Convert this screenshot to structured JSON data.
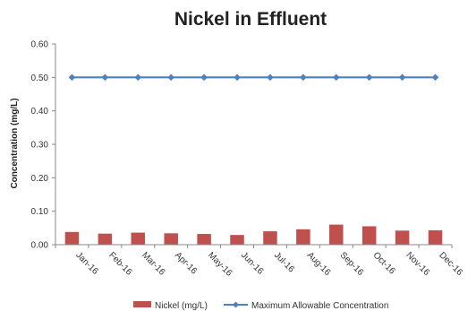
{
  "chart_data": {
    "type": "bar",
    "title": "Nickel in Effluent",
    "xlabel": "",
    "ylabel": "Concentration (mg/L)",
    "categories": [
      "Jan-16",
      "Feb-16",
      "Mar-16",
      "Apr-16",
      "May-16",
      "Jun-16",
      "Jul-16",
      "Aug-16",
      "Sep-16",
      "Oct-16",
      "Nov-16",
      "Dec-16"
    ],
    "ylim": [
      0,
      0.6
    ],
    "yticks": [
      "0.00",
      "0.10",
      "0.20",
      "0.30",
      "0.40",
      "0.50",
      "0.60"
    ],
    "grid": false,
    "legend_position": "bottom",
    "series": [
      {
        "name": "Nickel (mg/L)",
        "kind": "bar",
        "color": "#c0504d",
        "values": [
          0.038,
          0.033,
          0.036,
          0.034,
          0.032,
          0.029,
          0.04,
          0.046,
          0.06,
          0.055,
          0.042,
          0.043
        ]
      },
      {
        "name": "Maximum Allowable Concentration",
        "kind": "line",
        "marker": "diamond",
        "color": "#4f81bd",
        "values": [
          0.5,
          0.5,
          0.5,
          0.5,
          0.5,
          0.5,
          0.5,
          0.5,
          0.5,
          0.5,
          0.5,
          0.5
        ]
      }
    ]
  }
}
